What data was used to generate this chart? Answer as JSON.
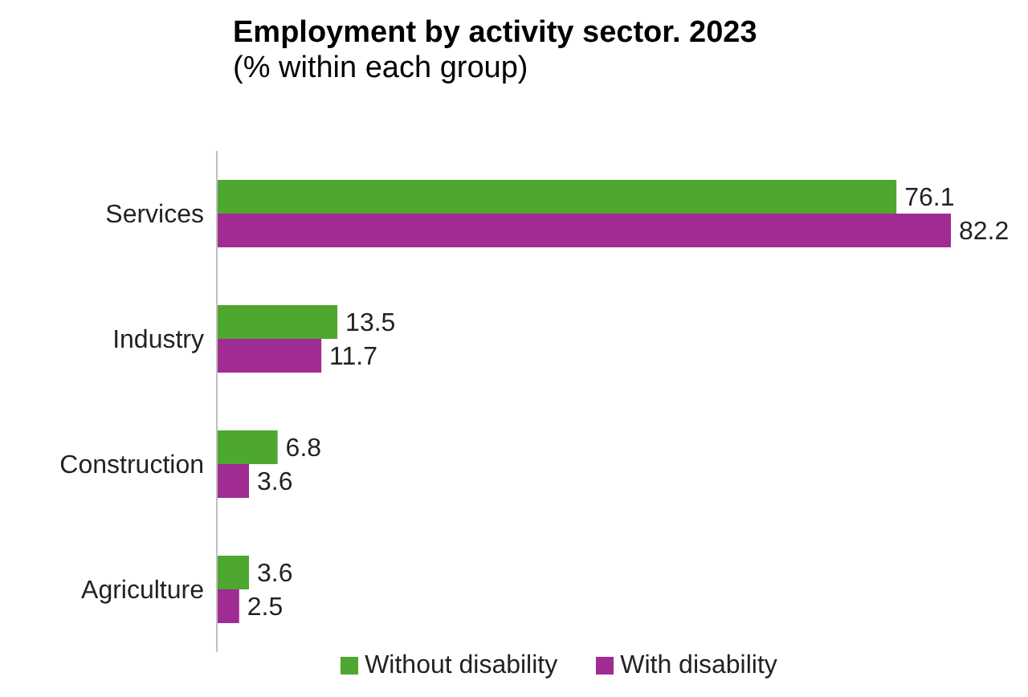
{
  "chart_data": {
    "type": "bar",
    "orientation": "horizontal",
    "title": "Employment by activity sector. 2023",
    "subtitle": "(% within each group)",
    "categories": [
      "Services",
      "Industry",
      "Construction",
      "Agriculture"
    ],
    "series": [
      {
        "name": "Without disability",
        "color": "#4ea72e",
        "values": [
          76.1,
          13.5,
          6.8,
          3.6
        ]
      },
      {
        "name": "With disability",
        "color": "#a02b93",
        "values": [
          82.2,
          11.7,
          3.6,
          2.5
        ]
      }
    ],
    "data_labels": true,
    "legend": "bottom",
    "grid": false
  }
}
